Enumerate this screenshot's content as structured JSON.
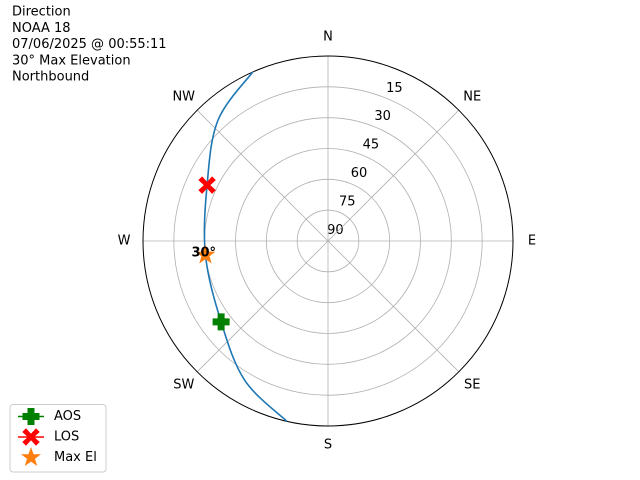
{
  "chart_data": {
    "type": "polar",
    "title_lines": [
      "Direction",
      "NOAA 18",
      "07/06/2025 @ 00:55:11",
      "30° Max Elevation",
      "Northbound"
    ],
    "rlim": [
      90,
      0
    ],
    "rticks": [
      15,
      30,
      45,
      60,
      75,
      90
    ],
    "theta_ticks": [
      {
        "value": 0,
        "label": "N"
      },
      {
        "value": 45,
        "label": "NE"
      },
      {
        "value": 90,
        "label": "E"
      },
      {
        "value": 135,
        "label": "SE"
      },
      {
        "value": 180,
        "label": "S"
      },
      {
        "value": 225,
        "label": "SW"
      },
      {
        "value": 270,
        "label": "W"
      },
      {
        "value": 315,
        "label": "NW"
      }
    ],
    "grid": true,
    "track": {
      "color": "#1f77b4",
      "az": [
        192.8,
        210.8,
        232.9,
        263.5,
        294.8,
        317.7,
        336
      ],
      "el": [
        0,
        11,
        24.8,
        30,
        25.2,
        10.5,
        0
      ]
    },
    "markers": [
      {
        "name": "AOS",
        "color": "#008000",
        "shape": "plus",
        "line": true,
        "az": 232.9,
        "el": 24.8
      },
      {
        "name": "LOS",
        "color": "#ff0000",
        "shape": "x",
        "line": true,
        "az": 294.8,
        "el": 25.2
      },
      {
        "name": "Max El",
        "color": "#ff7f0e",
        "shape": "star",
        "line": false,
        "az": 263.5,
        "el": 30
      }
    ],
    "annotation": "30°",
    "legend": "lower left"
  }
}
